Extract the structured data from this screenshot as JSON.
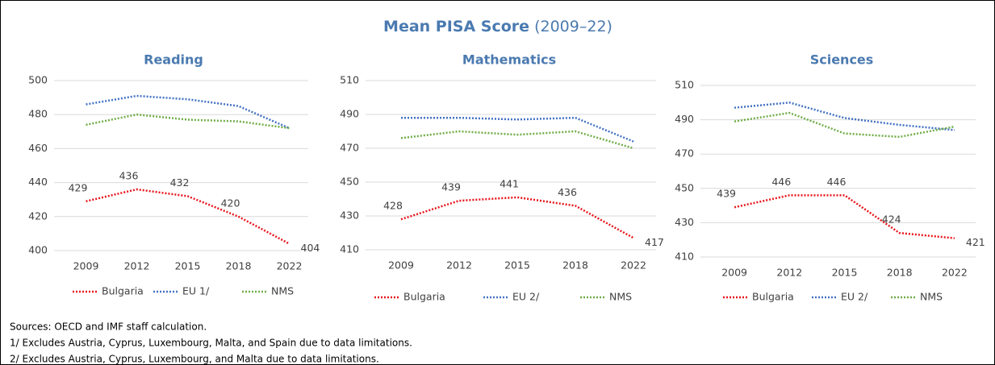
{
  "title": "Mean PISA Score",
  "subtitle": "(2009–22)",
  "chart_data": [
    {
      "type": "line",
      "title": "Reading",
      "categories": [
        "2009",
        "2012",
        "2015",
        "2018",
        "2022"
      ],
      "ylim": [
        400,
        500
      ],
      "yticks": [
        400,
        420,
        440,
        460,
        480,
        500
      ],
      "grid": true,
      "series": [
        {
          "name": "Bulgaria",
          "color": "#e8141b",
          "values": [
            429,
            436,
            432,
            420,
            404
          ],
          "data_labels": true
        },
        {
          "name": "EU 1/",
          "color": "#4472c4",
          "values": [
            486,
            491,
            489,
            485,
            472
          ]
        },
        {
          "name": "NMS",
          "color": "#70ad47",
          "values": [
            474,
            480,
            477,
            476,
            472
          ]
        }
      ]
    },
    {
      "type": "line",
      "title": "Mathematics",
      "categories": [
        "2009",
        "2012",
        "2015",
        "2018",
        "2022"
      ],
      "ylim": [
        410,
        510
      ],
      "yticks": [
        410,
        430,
        450,
        470,
        490,
        510
      ],
      "grid": true,
      "series": [
        {
          "name": "Bulgaria",
          "color": "#e8141b",
          "values": [
            428,
            439,
            441,
            436,
            417
          ],
          "data_labels": true
        },
        {
          "name": "EU 2/",
          "color": "#4472c4",
          "values": [
            488,
            488,
            487,
            488,
            474
          ]
        },
        {
          "name": "NMS",
          "color": "#70ad47",
          "values": [
            476,
            480,
            478,
            480,
            470
          ]
        }
      ]
    },
    {
      "type": "line",
      "title": "Sciences",
      "categories": [
        "2009",
        "2012",
        "2015",
        "2018",
        "2022"
      ],
      "ylim": [
        410,
        510
      ],
      "yticks": [
        410,
        430,
        450,
        470,
        490,
        510
      ],
      "grid": true,
      "series": [
        {
          "name": "Bulgaria",
          "color": "#e8141b",
          "values": [
            439,
            446,
            446,
            424,
            421
          ],
          "data_labels": true
        },
        {
          "name": "EU 2/",
          "color": "#4472c4",
          "values": [
            497,
            500,
            491,
            487,
            484
          ]
        },
        {
          "name": "NMS",
          "color": "#70ad47",
          "values": [
            489,
            494,
            482,
            480,
            486
          ]
        }
      ]
    }
  ],
  "notes": [
    "Sources: OECD and IMF staff calculation.",
    "1/ Excludes Austria, Cyprus, Luxembourg, Malta, and Spain due to data limitations.",
    "2/ Excludes Austria, Cyprus, Luxembourg, and Malta due to data limitations."
  ]
}
